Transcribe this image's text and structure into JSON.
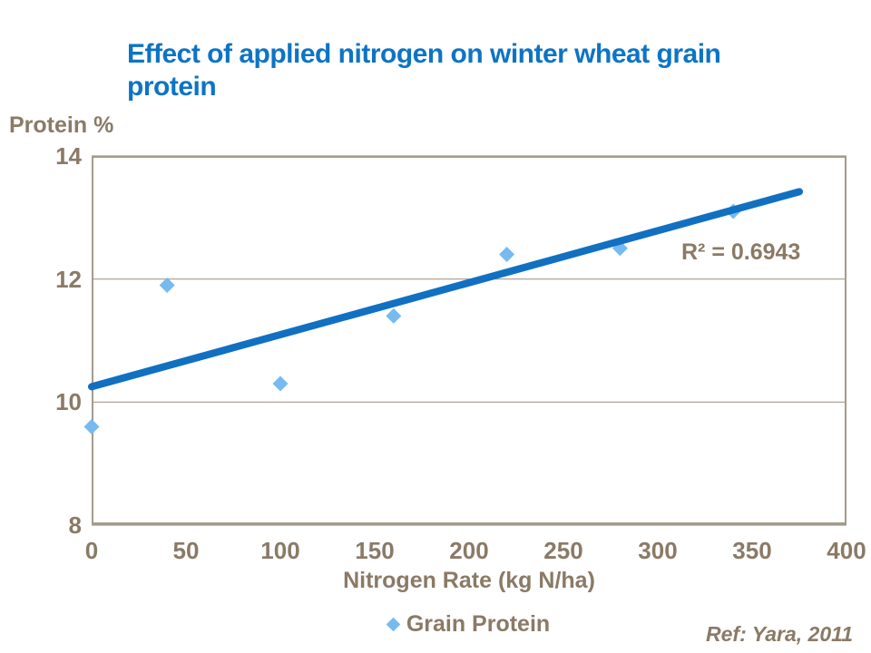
{
  "header": {
    "title_line1": "Effect of applied nitrogen on winter wheat grain",
    "title_line2": "protein"
  },
  "y_axis_title": "Protein %",
  "x_axis_title": "Nitrogen Rate (kg N/ha)",
  "annotation_label": "R² = 0.6943",
  "legend": {
    "marker": "diamond-icon",
    "label": "Grain Protein"
  },
  "footer": {
    "reference": "Ref: Yara, 2011"
  },
  "colors": {
    "title_blue": "#0d74c5",
    "trendline_blue": "#1170c1",
    "marker_blue": "#76baf0",
    "text_brown": "#8a7a66",
    "axis_brown": "#a59a8a"
  },
  "chart_data": {
    "type": "scatter",
    "title": "Effect of applied nitrogen on winter wheat grain protein",
    "xlabel": "Nitrogen Rate (kg N/ha)",
    "ylabel": "Protein %",
    "xlim": [
      0,
      400
    ],
    "ylim": [
      8,
      14
    ],
    "x_ticks": [
      0,
      50,
      100,
      150,
      200,
      250,
      300,
      350,
      400
    ],
    "y_ticks": [
      8,
      10,
      12,
      14
    ],
    "grid": "horizontal",
    "legend_position": "bottom-center",
    "series": [
      {
        "name": "Grain Protein",
        "marker": "diamond",
        "color": "#76baf0",
        "points": [
          [
            0,
            9.6
          ],
          [
            40,
            11.9
          ],
          [
            100,
            10.3
          ],
          [
            160,
            11.4
          ],
          [
            220,
            12.4
          ],
          [
            280,
            12.5
          ],
          [
            340,
            13.1
          ]
        ]
      }
    ],
    "trendline": {
      "type": "linear",
      "x_start": 0,
      "y_start": 10.25,
      "x_end": 375,
      "y_end": 13.42,
      "r_squared": 0.6943,
      "color": "#1170c1"
    },
    "annotation": {
      "text": "R² = 0.6943"
    }
  }
}
